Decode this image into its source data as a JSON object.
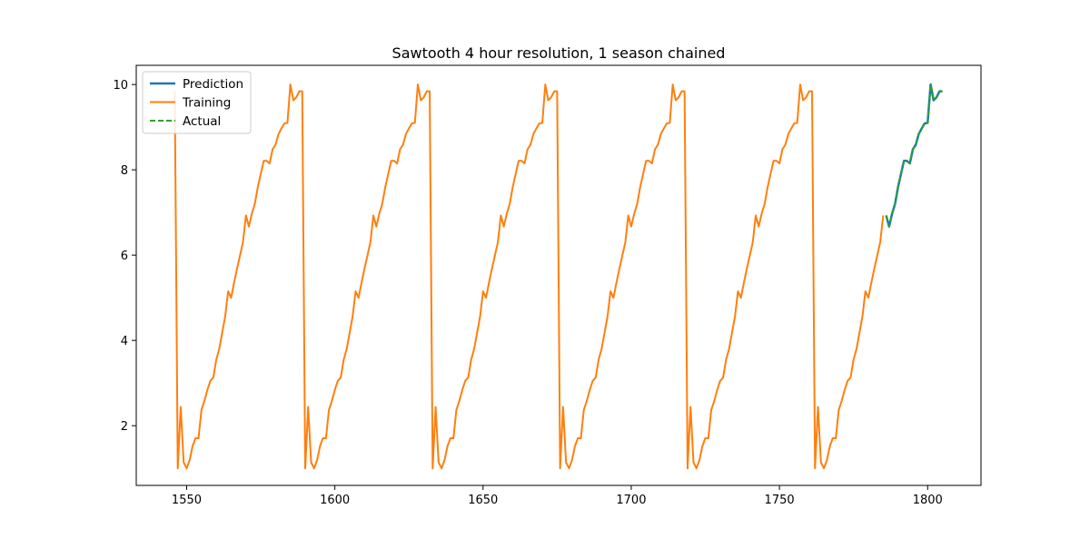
{
  "chart_data": {
    "type": "line",
    "title": "Sawtooth 4 hour resolution, 1 season chained",
    "xlabel": "",
    "ylabel": "",
    "xlim": [
      1533,
      1818
    ],
    "ylim": [
      0.6,
      10.45
    ],
    "xticks": [
      1550,
      1600,
      1650,
      1700,
      1750,
      1800
    ],
    "yticks": [
      2,
      4,
      6,
      8,
      10
    ],
    "grid": false,
    "legend_position": "top-left",
    "pattern": [
      1.0,
      2.44,
      1.14,
      1.0,
      1.19,
      1.52,
      1.71,
      1.7,
      2.37,
      2.58,
      2.84,
      3.05,
      3.13,
      3.55,
      3.8,
      4.18,
      4.56,
      5.15,
      5.0,
      5.35,
      5.68,
      5.99,
      6.3,
      6.93,
      6.67,
      6.97,
      7.2,
      7.59,
      7.9,
      8.21,
      8.21,
      8.15,
      8.48,
      8.59,
      8.84,
      8.97,
      9.09,
      9.1,
      10.0,
      9.63,
      9.7,
      9.84,
      9.84
    ],
    "series": [
      {
        "name": "Prediction",
        "color": "#1f77b4",
        "line": "solid",
        "x_start": 1786,
        "x_end": 1805,
        "pattern_offset": 23
      },
      {
        "name": "Training",
        "color": "#ff7f0e",
        "line": "solid",
        "x_start": 1546,
        "x_end": 1785,
        "pattern_offset": 42
      },
      {
        "name": "Actual",
        "color": "#2ca02c",
        "line": "dashed",
        "x_start": 1786,
        "x_end": 1805,
        "pattern_offset": 23
      }
    ]
  }
}
